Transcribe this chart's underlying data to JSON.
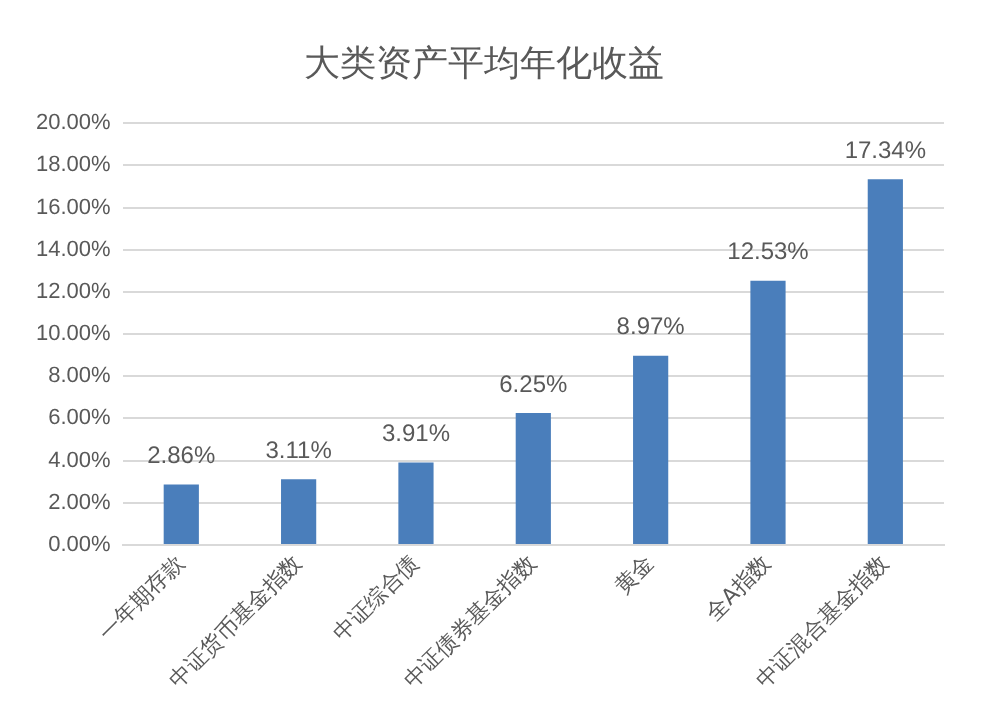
{
  "chart_data": {
    "type": "bar",
    "title": "大类资产平均年化收益",
    "categories": [
      "一年期存款",
      "中证货币基金指数",
      "中证综合债",
      "中证债券基金指数",
      "黄金",
      "全A指数",
      "中证混合基金指数"
    ],
    "values": [
      2.86,
      3.11,
      3.91,
      6.25,
      8.97,
      12.53,
      17.34
    ],
    "value_labels": [
      "2.86%",
      "3.11%",
      "3.91%",
      "6.25%",
      "8.97%",
      "12.53%",
      "17.34%"
    ],
    "color": "#4a7ebb",
    "ylim": [
      0,
      20
    ],
    "yticks": [
      {
        "value": 0,
        "label": "0.00%"
      },
      {
        "value": 2,
        "label": "2.00%"
      },
      {
        "value": 4,
        "label": "4.00%"
      },
      {
        "value": 6,
        "label": "6.00%"
      },
      {
        "value": 8,
        "label": "8.00%"
      },
      {
        "value": 10,
        "label": "10.00%"
      },
      {
        "value": 12,
        "label": "12.00%"
      },
      {
        "value": 14,
        "label": "14.00%"
      },
      {
        "value": 16,
        "label": "16.00%"
      },
      {
        "value": 18,
        "label": "18.00%"
      },
      {
        "value": 20,
        "label": "20.00%"
      }
    ],
    "grid": "y"
  }
}
